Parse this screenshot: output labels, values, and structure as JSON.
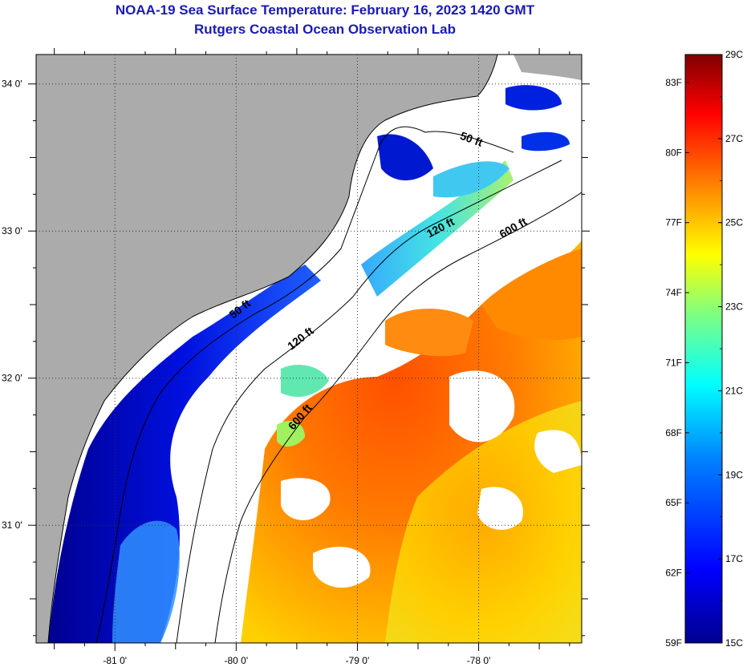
{
  "title": {
    "line1": "NOAA-19 Sea Surface Temperature:  February 16, 2023 1420 GMT",
    "line2": "Rutgers Coastal Ocean Observation Lab"
  },
  "map": {
    "lat_ticks": [
      {
        "value": 34.0,
        "label": "34 0'"
      },
      {
        "value": 33.0,
        "label": "33 0'"
      },
      {
        "value": 32.0,
        "label": "32 0'"
      },
      {
        "value": 31.0,
        "label": "31 0'"
      }
    ],
    "lon_ticks": [
      {
        "value": -81.0,
        "label": "-81 0'"
      },
      {
        "value": -80.0,
        "label": "-80 0'"
      },
      {
        "value": -79.0,
        "label": "-79 0'"
      },
      {
        "value": -78.0,
        "label": "-78 0'"
      }
    ],
    "lon_range": [
      -81.65,
      -77.15
    ],
    "lat_range": [
      30.2,
      34.2
    ],
    "depth_contours": [
      {
        "label": "50 ft",
        "lon": -78.07,
        "lat": 33.6
      },
      {
        "label": "120 ft",
        "lon": -78.3,
        "lat": 33.0
      },
      {
        "label": "600 ft",
        "lon": -77.7,
        "lat": 33.0
      },
      {
        "label": "50 ft",
        "lon": -79.95,
        "lat": 32.45
      },
      {
        "label": "120 ft",
        "lon": -79.45,
        "lat": 32.25
      },
      {
        "label": "600 ft",
        "lon": -79.45,
        "lat": 31.72
      }
    ],
    "colors": {
      "land": "#ababab",
      "cloud": "#ffffff",
      "coast": "#000000"
    }
  },
  "colorbar": {
    "fahrenheit_labels": [
      "83F",
      "80F",
      "77F",
      "74F",
      "71F",
      "68F",
      "65F",
      "62F",
      "59F"
    ],
    "celsius_labels": [
      "29C",
      "27C",
      "25C",
      "23C",
      "21C",
      "19C",
      "17C",
      "15C"
    ],
    "min_c": 15,
    "max_c": 29,
    "colors": [
      "#00008f",
      "#0000ff",
      "#0080ff",
      "#00ffff",
      "#80ff80",
      "#ffff00",
      "#ff8000",
      "#ff0000",
      "#800000"
    ]
  }
}
